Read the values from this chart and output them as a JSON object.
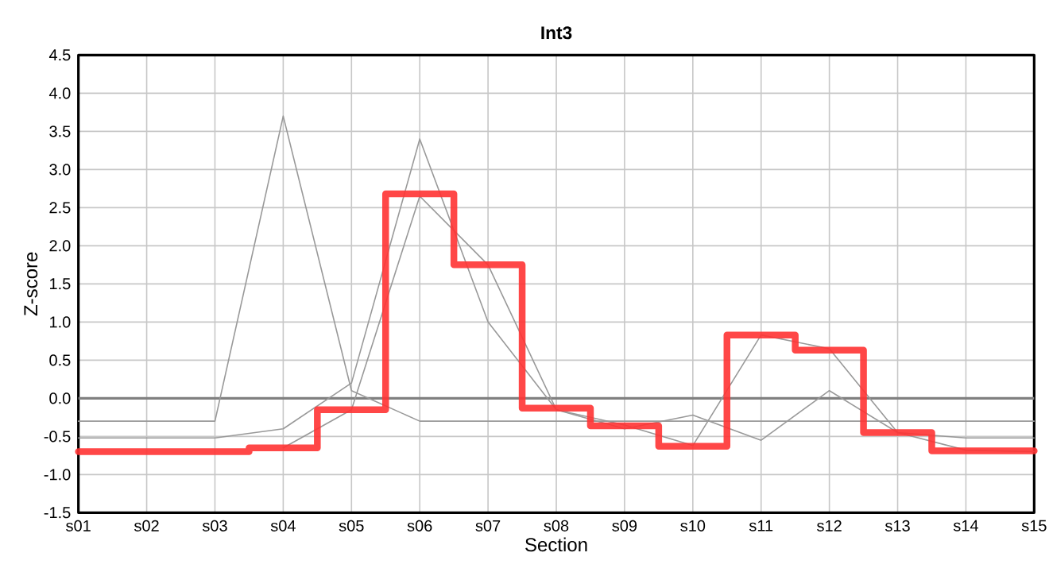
{
  "chart_data": {
    "type": "line",
    "title": "Int3",
    "xlabel": "Section",
    "ylabel": "Z-score",
    "categories": [
      "s01",
      "s02",
      "s03",
      "s04",
      "s05",
      "s06",
      "s07",
      "s08",
      "s09",
      "s10",
      "s11",
      "s12",
      "s13",
      "s14",
      "s15"
    ],
    "series": [
      {
        "color": "#999999",
        "values": [
          -0.3,
          -0.3,
          -0.3,
          3.7,
          0.1,
          -0.3,
          -0.3,
          -0.3,
          -0.3,
          -0.3,
          -0.3,
          -0.3,
          -0.3,
          -0.3,
          -0.3
        ]
      },
      {
        "color": "#999999",
        "values": [
          -0.52,
          -0.52,
          -0.52,
          -0.4,
          0.2,
          3.4,
          1.0,
          -0.15,
          -0.4,
          -0.22,
          -0.55,
          0.1,
          -0.45,
          -0.52,
          -0.52
        ]
      },
      {
        "color": "#999999",
        "values": [
          null,
          null,
          null,
          -0.65,
          -0.15,
          2.65,
          1.75,
          -0.15,
          -0.35,
          -0.62,
          0.83,
          0.65,
          -0.45,
          -0.68,
          -0.7
        ]
      },
      {
        "type": "step",
        "color": "#ff3333",
        "values": [
          -0.7,
          -0.7,
          -0.7,
          -0.65,
          -0.15,
          2.68,
          1.75,
          -0.13,
          -0.36,
          -0.63,
          0.83,
          0.63,
          -0.45,
          -0.69,
          -0.69
        ]
      }
    ],
    "ylim": [
      -1.5,
      4.5
    ],
    "yticks": [
      -1.5,
      {
        "value": -1,
        "label": "-1.0"
      },
      -0.5,
      {
        "value": 0,
        "label": "0.0"
      },
      0.5,
      {
        "value": 1,
        "label": "1.0"
      },
      1.5,
      {
        "value": 2,
        "label": "2.0"
      },
      2.5,
      {
        "value": 3,
        "label": "3.0"
      },
      3.5,
      {
        "value": 4,
        "label": "4.0"
      },
      4.5
    ],
    "ref_lines": [
      {
        "axis": "y",
        "value": 0,
        "color": "#808080"
      }
    ],
    "grid": true,
    "marker": "none",
    "line_style": "solid"
  }
}
